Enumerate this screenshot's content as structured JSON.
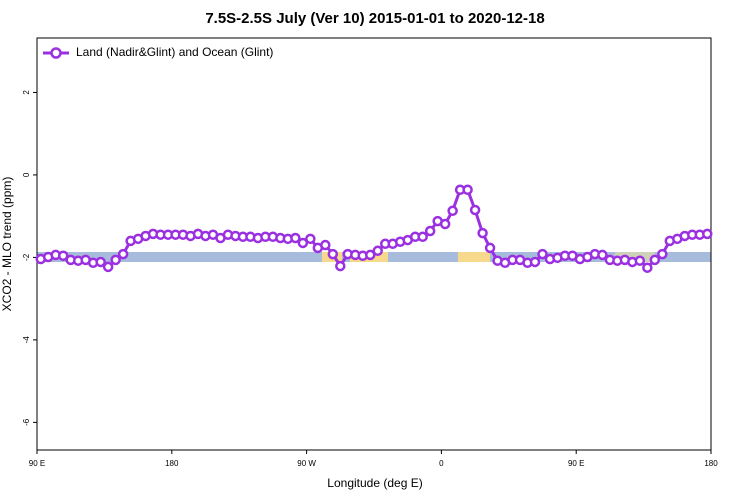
{
  "chart_data": {
    "type": "line",
    "title": "7.5S-2.5S July (Ver 10)   2015-01-01 to 2020-12-18",
    "x_label": "Longitude (deg E)",
    "y_label": "XCO2 - MLO trend (ppm)",
    "x": [
      92.5,
      97.5,
      102.5,
      107.5,
      112.5,
      117.5,
      122.5,
      127.5,
      132.5,
      137.5,
      142.5,
      147.5,
      152.5,
      157.5,
      162.5,
      167.5,
      172.5,
      177.5,
      182.5,
      187.5,
      192.5,
      197.5,
      202.5,
      207.5,
      212.5,
      217.5,
      222.5,
      227.5,
      232.5,
      237.5,
      242.5,
      247.5,
      252.5,
      257.5,
      262.5,
      267.5,
      272.5,
      277.5,
      282.5,
      287.5,
      292.5,
      297.5,
      302.5,
      307.5,
      312.5,
      317.5,
      322.5,
      327.5,
      332.5,
      337.5,
      342.5,
      347.5,
      352.5,
      357.5,
      362.5,
      367.5,
      372.5,
      377.5,
      382.5,
      387.5,
      392.5,
      397.5,
      402.5,
      407.5,
      412.5,
      417.5,
      422.5,
      427.5,
      432.5,
      437.5,
      442.5,
      447.5,
      452.5,
      457.5,
      462.5,
      467.5,
      472.5,
      477.5,
      482.5,
      487.5,
      492.5,
      497.5,
      502.5,
      507.5,
      512.5,
      517.5,
      522.5,
      527.5,
      532.5,
      537.5
    ],
    "series": [
      {
        "name": "Land (Nadir&Glint) and Ocean (Glint)",
        "color": "#9b30e0",
        "values": [
          -2.04,
          -1.99,
          -1.94,
          -1.96,
          -2.06,
          -2.08,
          -2.06,
          -2.13,
          -2.11,
          -2.23,
          -2.06,
          -1.92,
          -1.6,
          -1.55,
          -1.48,
          -1.43,
          -1.45,
          -1.45,
          -1.45,
          -1.45,
          -1.48,
          -1.43,
          -1.48,
          -1.45,
          -1.53,
          -1.45,
          -1.48,
          -1.5,
          -1.5,
          -1.53,
          -1.5,
          -1.5,
          -1.53,
          -1.55,
          -1.53,
          -1.65,
          -1.55,
          -1.77,
          -1.7,
          -1.92,
          -2.21,
          -1.92,
          -1.94,
          -1.96,
          -1.94,
          -1.84,
          -1.67,
          -1.67,
          -1.62,
          -1.58,
          -1.5,
          -1.5,
          -1.36,
          -1.12,
          -1.19,
          -0.87,
          -0.36,
          -0.36,
          -0.85,
          -1.41,
          -1.77,
          -2.08,
          -2.13,
          -2.06,
          -2.06,
          -2.13,
          -2.11,
          -1.92,
          -2.04,
          -2.01,
          -1.96,
          -1.96,
          -2.04,
          -1.99,
          -1.92,
          -1.94,
          -2.06,
          -2.08,
          -2.06,
          -2.11,
          -2.08,
          -2.25,
          -2.06,
          -1.92,
          -1.6,
          -1.55,
          -1.48,
          -1.45,
          -1.45,
          -1.43
        ]
      }
    ],
    "xlim": [
      90,
      540
    ],
    "xticks": [
      {
        "value": 90,
        "label": "90 E"
      },
      180,
      {
        "value": 270,
        "label": "90 W"
      },
      {
        "value": 360,
        "label": "0"
      },
      {
        "value": 450,
        "label": "90 E"
      },
      {
        "value": 540,
        "label": "180"
      }
    ],
    "ylim": [
      -6.67,
      3.32
    ],
    "yticks": [
      -6,
      -4,
      -2,
      0,
      2
    ],
    "legend": "top-left"
  }
}
